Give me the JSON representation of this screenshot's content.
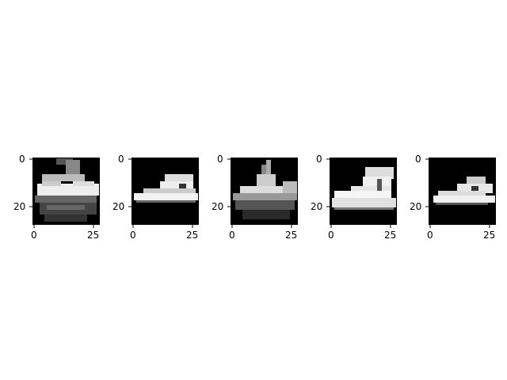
{
  "figure": {
    "panels": [
      {
        "image": "sneaker-low-top-noisy",
        "yticks": [
          "0",
          "20"
        ],
        "xticks": [
          "0",
          "25"
        ]
      },
      {
        "image": "sneaker-low-top",
        "yticks": [
          "0",
          "20"
        ],
        "xticks": [
          "0",
          "25"
        ]
      },
      {
        "image": "sneaker-noisy-spiky",
        "yticks": [
          "0",
          "20"
        ],
        "xticks": [
          "0",
          "25"
        ]
      },
      {
        "image": "sneaker-high-top",
        "yticks": [
          "0",
          "20"
        ],
        "xticks": [
          "0",
          "25"
        ]
      },
      {
        "image": "sneaker-low-top-small",
        "yticks": [
          "0",
          "20"
        ],
        "xticks": [
          "0",
          "25"
        ]
      }
    ]
  }
}
